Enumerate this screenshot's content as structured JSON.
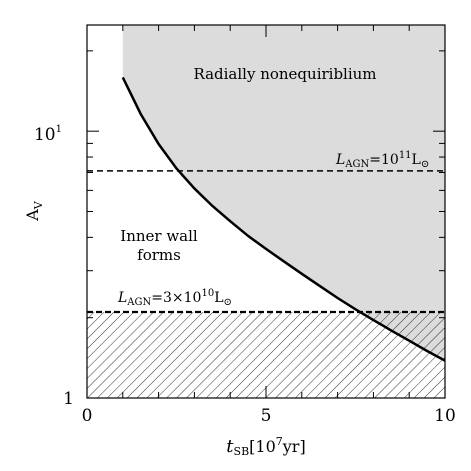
{
  "chart_data": {
    "type": "line",
    "xlabel_var": "t",
    "xlabel_sub": "SB",
    "xlabel_unit": "[10",
    "xlabel_unit_exp": "7",
    "xlabel_unit_tail": "yr]",
    "ylabel_main": "A",
    "ylabel_sub": "V",
    "xlim": [
      0,
      10
    ],
    "ylim": [
      1,
      25
    ],
    "yscale": "log",
    "x_ticks": [
      {
        "value": 0,
        "label": "0"
      },
      {
        "value": 5,
        "label": "5"
      },
      {
        "value": 10,
        "label": "10"
      }
    ],
    "y_ticks": [
      {
        "value": 1,
        "label": "1"
      },
      {
        "value": 10,
        "label_base": "10",
        "label_exp": "1"
      }
    ],
    "boundary_curve": {
      "x": [
        1.0,
        1.5,
        2.0,
        2.5,
        3.0,
        3.5,
        4.0,
        4.5,
        5.0,
        5.5,
        6.0,
        6.5,
        7.0,
        7.5,
        8.0,
        8.5,
        9.0,
        9.5,
        10.0
      ],
      "y": [
        15.9,
        11.6,
        8.95,
        7.25,
        6.1,
        5.25,
        4.6,
        4.05,
        3.62,
        3.25,
        2.92,
        2.63,
        2.37,
        2.15,
        1.96,
        1.79,
        1.64,
        1.5,
        1.38
      ]
    },
    "agn_lines": [
      {
        "y": 7.1,
        "label_main": "L",
        "label_sub": "AGN",
        "label_eq": "=10",
        "label_exp": "11",
        "label_unit": "L",
        "label_unit_sub": "⊙"
      },
      {
        "y": 2.1,
        "label_main": "L",
        "label_sub": "AGN",
        "label_eq": "=3×10",
        "label_exp": "10",
        "label_unit": "L",
        "label_unit_sub": "⊙"
      }
    ],
    "shaded_region": {
      "label": "Radially nonequiriblium",
      "color": "#dcdcdc",
      "x_start": 1.0
    },
    "white_region_label_lines": [
      "Inner wall",
      "forms"
    ],
    "hatched_region": {
      "y_top": 2.1
    }
  }
}
